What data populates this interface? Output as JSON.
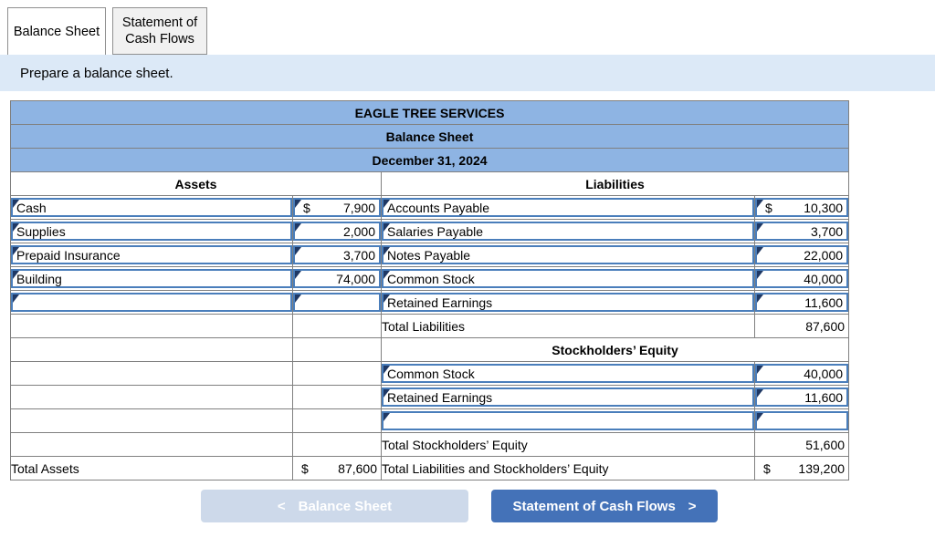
{
  "tabs": [
    {
      "label": "Balance Sheet",
      "active": true
    },
    {
      "label": "Statement of Cash Flows",
      "active": false
    }
  ],
  "instruction": "Prepare a balance sheet.",
  "table": {
    "company": "EAGLE TREE SERVICES",
    "statement_title": "Balance Sheet",
    "statement_date": "December 31, 2024",
    "left_section_header": "Assets",
    "right_section_header": "Liabilities",
    "rows": [
      {
        "left": {
          "type": "input",
          "label": "Cash",
          "prefix": "$",
          "value": "7,900"
        },
        "right": {
          "type": "input",
          "label": "Accounts Payable",
          "prefix": "$",
          "value": "10,300"
        }
      },
      {
        "left": {
          "type": "input",
          "label": "Supplies",
          "prefix": "",
          "value": "2,000"
        },
        "right": {
          "type": "input",
          "label": "Salaries Payable",
          "prefix": "",
          "value": "3,700"
        }
      },
      {
        "left": {
          "type": "input",
          "label": "Prepaid Insurance",
          "prefix": "",
          "value": "3,700"
        },
        "right": {
          "type": "input",
          "label": "Notes Payable",
          "prefix": "",
          "value": "22,000"
        }
      },
      {
        "left": {
          "type": "input",
          "label": "Building",
          "prefix": "",
          "value": "74,000"
        },
        "right": {
          "type": "input",
          "label": "Common Stock",
          "prefix": "",
          "value": "40,000"
        }
      },
      {
        "left": {
          "type": "input-empty"
        },
        "right": {
          "type": "input",
          "label": "Retained Earnings",
          "prefix": "",
          "value": "11,600"
        }
      },
      {
        "left": {
          "type": "blank"
        },
        "right": {
          "type": "total",
          "label": "Total Liabilities",
          "prefix": "",
          "value": "87,600"
        }
      },
      {
        "left": {
          "type": "blank"
        },
        "right": {
          "type": "header",
          "label": "Stockholders’ Equity"
        }
      },
      {
        "left": {
          "type": "blank"
        },
        "right": {
          "type": "input",
          "label": "Common Stock",
          "prefix": "",
          "value": "40,000"
        }
      },
      {
        "left": {
          "type": "blank"
        },
        "right": {
          "type": "input",
          "label": "Retained Earnings",
          "prefix": "",
          "value": "11,600"
        }
      },
      {
        "left": {
          "type": "blank"
        },
        "right": {
          "type": "input-empty"
        }
      },
      {
        "left": {
          "type": "blank"
        },
        "right": {
          "type": "total",
          "label": "Total Stockholders’ Equity",
          "prefix": "",
          "value": "51,600"
        }
      },
      {
        "left": {
          "type": "grand",
          "label": "Total Assets",
          "prefix": "$",
          "value": "87,600"
        },
        "right": {
          "type": "grand",
          "label": "Total Liabilities and Stockholders’ Equity",
          "prefix": "$",
          "value": "139,200"
        }
      }
    ]
  },
  "footer": {
    "prev_label": "Balance Sheet",
    "next_label": "Statement of Cash Flows",
    "prev_chevron": "<",
    "next_chevron": ">"
  },
  "colors": {
    "header_blue": "#8eb4e3",
    "input_border_blue": "#4a7ebb",
    "marker_navy": "#1f3864",
    "banner_blue": "#dce9f7",
    "button_active_blue": "#4472b8",
    "button_disabled_blue": "#cdd9ea"
  }
}
